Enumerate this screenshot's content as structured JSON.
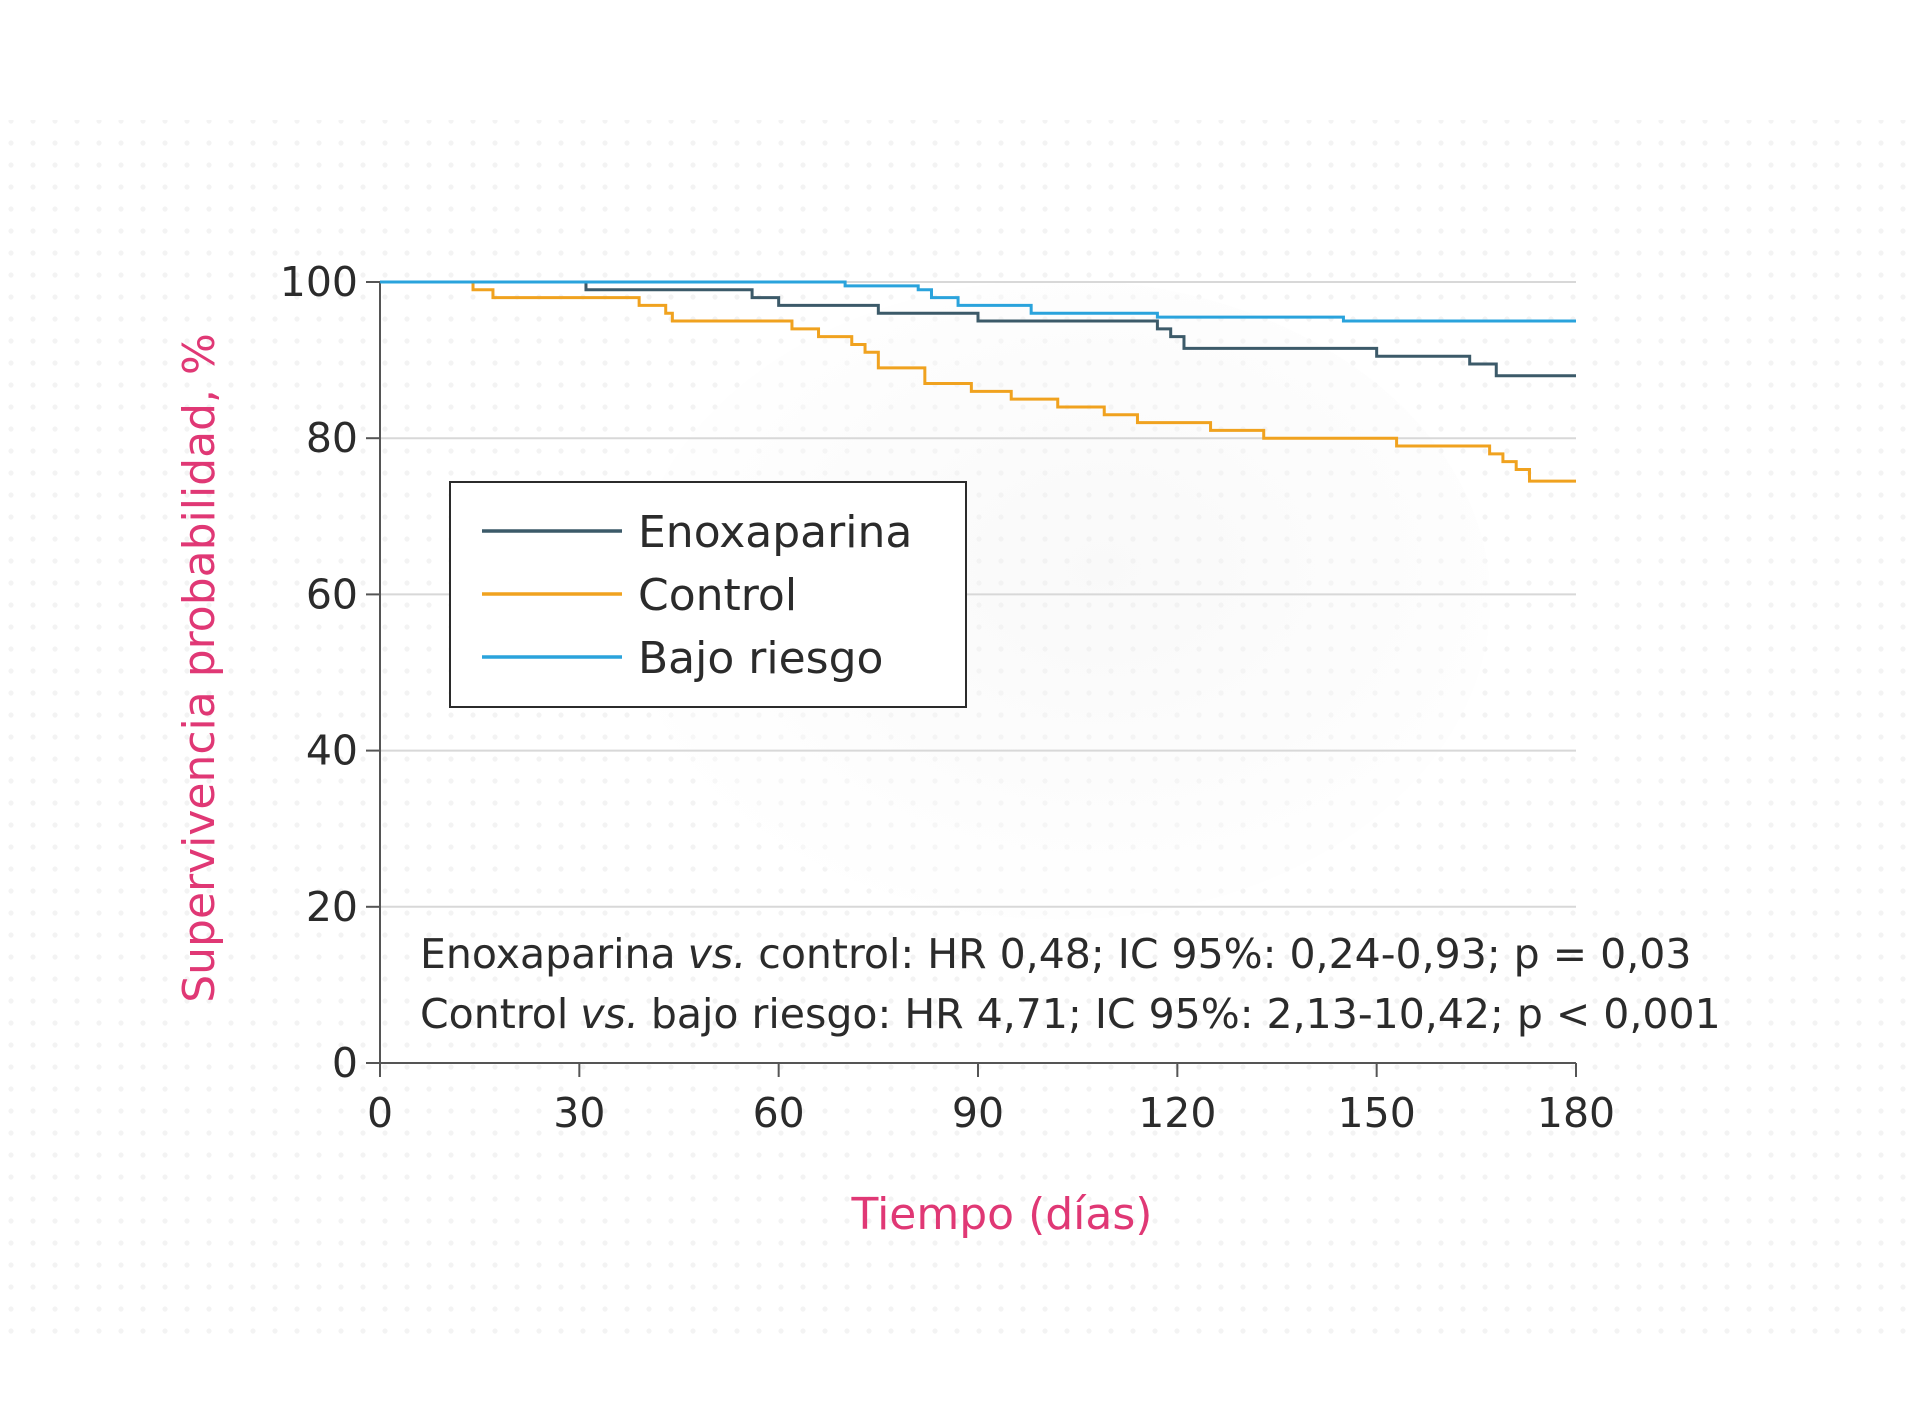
{
  "chart_data": {
    "type": "line",
    "subtype": "kaplan-meier-step",
    "xlabel": "Tiempo (días)",
    "ylabel": "Supervivencia probabilidad, %",
    "xlim": [
      0,
      180
    ],
    "ylim": [
      0,
      100
    ],
    "x_ticks": [
      "0",
      "30",
      "60",
      "90",
      "120",
      "150",
      "180"
    ],
    "y_ticks": [
      "0",
      "20",
      "40",
      "60",
      "80",
      "100"
    ],
    "grid": "horizontal",
    "legend_position": "upper-left",
    "colors": {
      "enoxaparina": "#3c5a69",
      "control": "#f0a21f",
      "bajo_riesgo": "#2aa3dc",
      "accent": "#e03875"
    },
    "series": [
      {
        "name": "Enoxaparina",
        "color": "#3c5a69",
        "x": [
          0,
          31,
          56,
          60,
          75,
          90,
          117,
          119,
          121,
          150,
          164,
          168,
          180
        ],
        "y": [
          100,
          99,
          98,
          97,
          96,
          95,
          94,
          93,
          91.5,
          90.5,
          89.5,
          88,
          88
        ]
      },
      {
        "name": "Control",
        "color": "#f0a21f",
        "x": [
          0,
          14,
          17,
          39,
          43,
          44,
          62,
          66,
          71,
          73,
          75,
          82,
          89,
          95,
          102,
          109,
          114,
          125,
          133,
          153,
          167,
          169,
          171,
          173,
          180
        ],
        "y": [
          100,
          99,
          98,
          97,
          96,
          95,
          94,
          93,
          92,
          91,
          89,
          87,
          86,
          85,
          84,
          83,
          82,
          81,
          80,
          79,
          78,
          77,
          76,
          74.5,
          74.5
        ]
      },
      {
        "name": "Bajo riesgo",
        "color": "#2aa3dc",
        "x": [
          0,
          70,
          81,
          83,
          87,
          98,
          117,
          145,
          180
        ],
        "y": [
          100,
          99.5,
          99,
          98,
          97,
          96,
          95.5,
          95,
          95
        ]
      }
    ],
    "annotations": [
      {
        "label": "Enoxaparina",
        "italic": "vs.",
        "rest": "control: HR 0,48; IC 95%: 0,24-0,93; p = 0,03"
      },
      {
        "label": "Control",
        "italic": "vs.",
        "rest": "bajo riesgo: HR 4,71; IC 95%: 2,13-10,42; p < 0,001"
      }
    ]
  }
}
